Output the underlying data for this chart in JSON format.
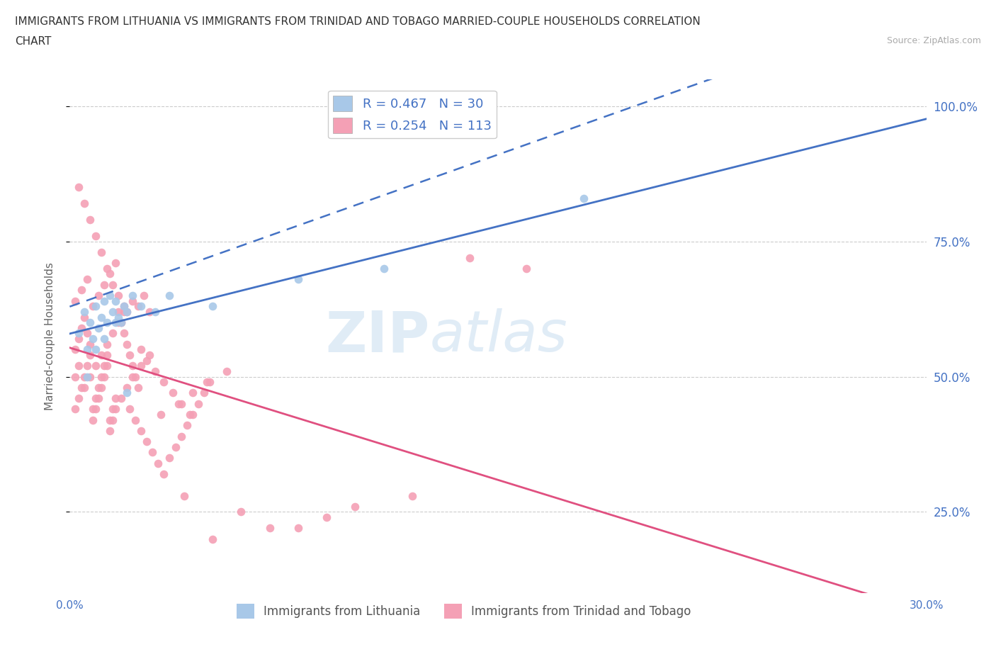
{
  "title_line1": "IMMIGRANTS FROM LITHUANIA VS IMMIGRANTS FROM TRINIDAD AND TOBAGO MARRIED-COUPLE HOUSEHOLDS CORRELATION",
  "title_line2": "CHART",
  "source_text": "Source: ZipAtlas.com",
  "ylabel": "Married-couple Households",
  "xlim": [
    0.0,
    0.3
  ],
  "ylim": [
    0.1,
    1.05
  ],
  "yticks": [
    0.25,
    0.5,
    0.75,
    1.0
  ],
  "ytick_labels": [
    "25.0%",
    "50.0%",
    "75.0%",
    "100.0%"
  ],
  "xticks": [
    0.0,
    0.05,
    0.1,
    0.15,
    0.2,
    0.25,
    0.3
  ],
  "xtick_labels": [
    "0.0%",
    "",
    "",
    "",
    "",
    "",
    "30.0%"
  ],
  "blue_color": "#a8c8e8",
  "pink_color": "#f4a0b5",
  "trend_blue_color": "#4472c4",
  "trend_pink_color": "#e05080",
  "axis_color": "#4472c4",
  "watermark_zip": "ZIP",
  "watermark_atlas": "atlas",
  "legend_R_blue": "R = 0.467",
  "legend_N_blue": "N = 30",
  "legend_R_pink": "R = 0.254",
  "legend_N_pink": "N = 113",
  "legend_label_blue": "Immigrants from Lithuania",
  "legend_label_pink": "Immigrants from Trinidad and Tobago",
  "blue_scatter_x": [
    0.003,
    0.005,
    0.006,
    0.007,
    0.008,
    0.009,
    0.01,
    0.011,
    0.012,
    0.013,
    0.014,
    0.015,
    0.016,
    0.017,
    0.018,
    0.019,
    0.02,
    0.022,
    0.025,
    0.03,
    0.035,
    0.05,
    0.08,
    0.11,
    0.18,
    0.006,
    0.009,
    0.012,
    0.016,
    0.02
  ],
  "blue_scatter_y": [
    0.58,
    0.62,
    0.55,
    0.6,
    0.57,
    0.63,
    0.59,
    0.61,
    0.64,
    0.6,
    0.65,
    0.62,
    0.64,
    0.61,
    0.6,
    0.63,
    0.62,
    0.65,
    0.63,
    0.62,
    0.65,
    0.63,
    0.68,
    0.7,
    0.83,
    0.5,
    0.55,
    0.57,
    0.6,
    0.47
  ],
  "pink_scatter_x": [
    0.002,
    0.003,
    0.004,
    0.005,
    0.006,
    0.007,
    0.008,
    0.009,
    0.01,
    0.011,
    0.012,
    0.013,
    0.014,
    0.015,
    0.016,
    0.017,
    0.018,
    0.019,
    0.02,
    0.021,
    0.022,
    0.023,
    0.024,
    0.025,
    0.027,
    0.03,
    0.033,
    0.036,
    0.039,
    0.042,
    0.002,
    0.003,
    0.004,
    0.005,
    0.006,
    0.007,
    0.008,
    0.009,
    0.01,
    0.011,
    0.012,
    0.013,
    0.014,
    0.015,
    0.016,
    0.018,
    0.02,
    0.022,
    0.025,
    0.028,
    0.002,
    0.003,
    0.005,
    0.007,
    0.009,
    0.011,
    0.013,
    0.015,
    0.017,
    0.019,
    0.021,
    0.023,
    0.025,
    0.027,
    0.029,
    0.031,
    0.033,
    0.035,
    0.037,
    0.039,
    0.041,
    0.043,
    0.045,
    0.047,
    0.049,
    0.032,
    0.038,
    0.043,
    0.048,
    0.055,
    0.04,
    0.06,
    0.08,
    0.1,
    0.12,
    0.14,
    0.16,
    0.05,
    0.07,
    0.09,
    0.002,
    0.004,
    0.006,
    0.008,
    0.01,
    0.012,
    0.014,
    0.016,
    0.018,
    0.02,
    0.022,
    0.024,
    0.026,
    0.028,
    0.003,
    0.005,
    0.007,
    0.009,
    0.011,
    0.013,
    0.015,
    0.017,
    0.019
  ],
  "pink_scatter_y": [
    0.5,
    0.52,
    0.48,
    0.5,
    0.52,
    0.54,
    0.44,
    0.46,
    0.48,
    0.5,
    0.52,
    0.54,
    0.42,
    0.44,
    0.46,
    0.62,
    0.6,
    0.58,
    0.56,
    0.54,
    0.52,
    0.5,
    0.48,
    0.55,
    0.53,
    0.51,
    0.49,
    0.47,
    0.45,
    0.43,
    0.55,
    0.57,
    0.59,
    0.61,
    0.58,
    0.56,
    0.42,
    0.44,
    0.46,
    0.48,
    0.5,
    0.52,
    0.4,
    0.42,
    0.44,
    0.46,
    0.48,
    0.5,
    0.52,
    0.54,
    0.44,
    0.46,
    0.48,
    0.5,
    0.52,
    0.54,
    0.56,
    0.58,
    0.6,
    0.62,
    0.44,
    0.42,
    0.4,
    0.38,
    0.36,
    0.34,
    0.32,
    0.35,
    0.37,
    0.39,
    0.41,
    0.43,
    0.45,
    0.47,
    0.49,
    0.43,
    0.45,
    0.47,
    0.49,
    0.51,
    0.28,
    0.25,
    0.22,
    0.26,
    0.28,
    0.72,
    0.7,
    0.2,
    0.22,
    0.24,
    0.64,
    0.66,
    0.68,
    0.63,
    0.65,
    0.67,
    0.69,
    0.71,
    0.6,
    0.62,
    0.64,
    0.63,
    0.65,
    0.62,
    0.85,
    0.82,
    0.79,
    0.76,
    0.73,
    0.7,
    0.67,
    0.65,
    0.63
  ]
}
